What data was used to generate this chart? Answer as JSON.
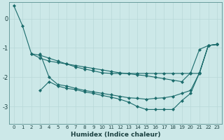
{
  "xlabel": "Humidex (Indice chaleur)",
  "background_color": "#cce8e8",
  "grid_color": "#b8d8d8",
  "line_color": "#1a6b6b",
  "xlim": [
    -0.5,
    23.5
  ],
  "ylim": [
    -3.6,
    0.55
  ],
  "yticks": [
    0,
    -1,
    -2,
    -3
  ],
  "xticks": [
    0,
    1,
    2,
    3,
    4,
    5,
    6,
    7,
    8,
    9,
    10,
    11,
    12,
    13,
    14,
    15,
    16,
    17,
    18,
    19,
    20,
    21,
    22,
    23
  ],
  "series": [
    {
      "x": [
        0,
        1,
        2,
        3,
        4,
        5,
        6,
        7,
        8,
        9,
        10,
        11,
        12,
        13,
        14,
        15,
        16,
        17,
        18,
        19,
        20,
        21,
        22,
        23
      ],
      "y": [
        0.45,
        -0.25,
        -1.2,
        -1.35,
        -1.45,
        -1.5,
        -1.55,
        -1.6,
        -1.65,
        -1.7,
        -1.75,
        -1.8,
        -1.85,
        -1.88,
        -1.92,
        -1.95,
        -2.0,
        -2.05,
        -2.1,
        -2.15,
        -1.85,
        -1.05,
        -0.92,
        -0.88
      ]
    },
    {
      "x": [
        2,
        3,
        4,
        5,
        6,
        7,
        8,
        9,
        10,
        11,
        12,
        13,
        14,
        15,
        16,
        17,
        18,
        19,
        20,
        21,
        22,
        23
      ],
      "y": [
        -1.2,
        -1.25,
        -1.35,
        -1.45,
        -1.55,
        -1.65,
        -1.72,
        -1.78,
        -1.85,
        -1.87,
        -1.87,
        -1.87,
        -1.87,
        -1.87,
        -1.87,
        -1.87,
        -1.87,
        -1.87,
        -1.87,
        -1.87,
        -0.92,
        -0.88
      ]
    },
    {
      "x": [
        3,
        4,
        5,
        6,
        7,
        8,
        9,
        10,
        11,
        12,
        13,
        14,
        15,
        16,
        17,
        18,
        19,
        20,
        21,
        22,
        23
      ],
      "y": [
        -1.2,
        -2.0,
        -2.25,
        -2.3,
        -2.38,
        -2.45,
        -2.5,
        -2.55,
        -2.6,
        -2.65,
        -2.7,
        -2.72,
        -2.75,
        -2.72,
        -2.7,
        -2.65,
        -2.55,
        -2.45,
        -1.85,
        -0.92,
        -0.88
      ]
    },
    {
      "x": [
        3,
        4,
        5,
        6,
        7,
        8,
        9,
        10,
        11,
        12,
        13,
        14,
        15,
        16,
        17,
        18,
        19,
        20,
        21,
        22,
        23
      ],
      "y": [
        -2.45,
        -2.15,
        -2.3,
        -2.38,
        -2.42,
        -2.5,
        -2.55,
        -2.62,
        -2.68,
        -2.75,
        -2.85,
        -3.0,
        -3.1,
        -3.1,
        -3.1,
        -3.1,
        -2.8,
        -2.55,
        -1.85,
        -0.92,
        -0.88
      ]
    }
  ]
}
